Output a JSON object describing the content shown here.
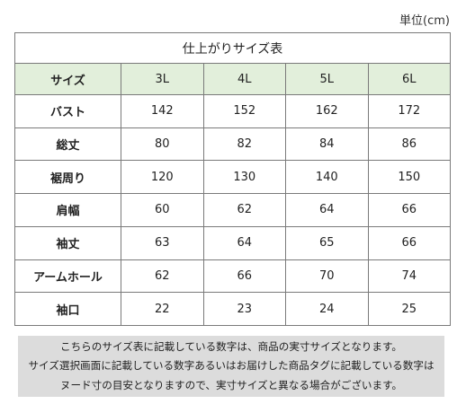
{
  "unit_label": "単位(cm)",
  "table": {
    "title": "仕上がりサイズ表",
    "header": {
      "label": "サイズ",
      "sizes": [
        "3L",
        "4L",
        "5L",
        "6L"
      ]
    },
    "rows": [
      {
        "label": "バスト",
        "values": [
          "142",
          "152",
          "162",
          "172"
        ]
      },
      {
        "label": "総丈",
        "values": [
          "80",
          "82",
          "84",
          "86"
        ]
      },
      {
        "label": "裾周り",
        "values": [
          "120",
          "130",
          "140",
          "150"
        ]
      },
      {
        "label": "肩幅",
        "values": [
          "60",
          "62",
          "64",
          "66"
        ]
      },
      {
        "label": "袖丈",
        "values": [
          "63",
          "64",
          "65",
          "66"
        ]
      },
      {
        "label": "アームホール",
        "values": [
          "62",
          "66",
          "70",
          "74"
        ]
      },
      {
        "label": "袖口",
        "values": [
          "22",
          "23",
          "24",
          "25"
        ]
      }
    ]
  },
  "note": {
    "lines": [
      "こちらのサイズ表に記載している数字は、商品の実寸サイズとなります。",
      "サイズ選択画面に記載している数字あるいはお届けした商品タグに記載している数字は",
      "ヌード寸の目安となりますので、実寸サイズと異なる場合がございます。"
    ]
  }
}
